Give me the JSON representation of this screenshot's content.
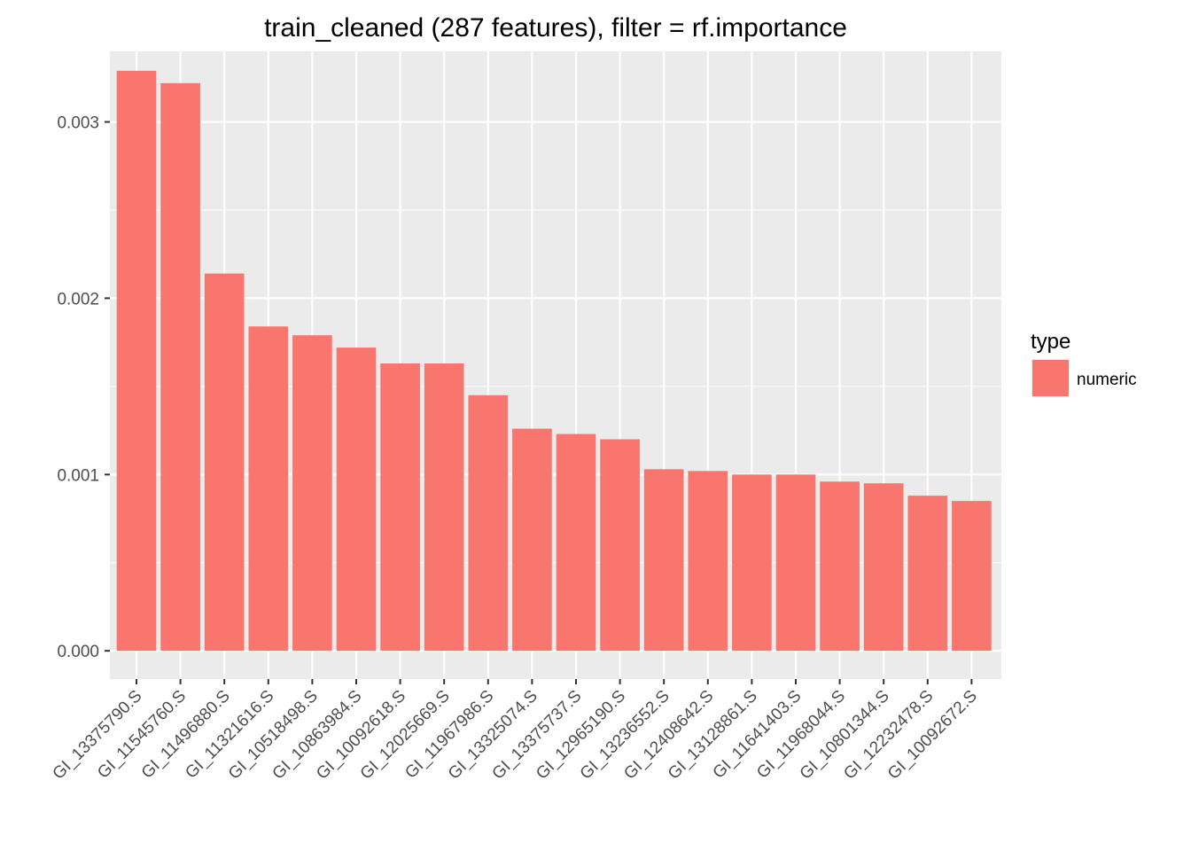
{
  "chart_data": {
    "type": "bar",
    "title": "train_cleaned (287 features), filter = rf.importance",
    "xlabel": "",
    "ylabel": "",
    "categories": [
      "GI_13375790.S",
      "GI_11545760.S",
      "GI_11496880.S",
      "GI_11321616.S",
      "GI_10518498.S",
      "GI_10863984.S",
      "GI_10092618.S",
      "GI_12025669.S",
      "GI_11967986.S",
      "GI_13325074.S",
      "GI_13375737.S",
      "GI_12965190.S",
      "GI_13236552.S",
      "GI_12408642.S",
      "GI_13128861.S",
      "GI_11641403.S",
      "GI_11968044.S",
      "GI_10801344.S",
      "GI_12232478.S",
      "GI_10092672.S"
    ],
    "series": [
      {
        "values": [
          0.00329,
          0.00322,
          0.00214,
          0.00184,
          0.00179,
          0.00172,
          0.00163,
          0.00163,
          0.00145,
          0.00126,
          0.00123,
          0.0012,
          0.00103,
          0.00102,
          0.001,
          0.001,
          0.00096,
          0.00095,
          0.00088,
          0.00085
        ],
        "color": "#F8766D"
      }
    ],
    "ylim": [
      -0.00016,
      0.0034
    ],
    "yticks": [
      0,
      0.001,
      0.002,
      0.003
    ],
    "ytick_labels": [
      "0.000",
      "0.001",
      "0.002",
      "0.003"
    ],
    "grid": true,
    "panel_background": "#EBEBEB",
    "grid_color": "#FFFFFF",
    "legend": {
      "position": "right",
      "title": "type",
      "entries": [
        {
          "label": "numeric",
          "color": "#F8766D"
        }
      ]
    }
  }
}
